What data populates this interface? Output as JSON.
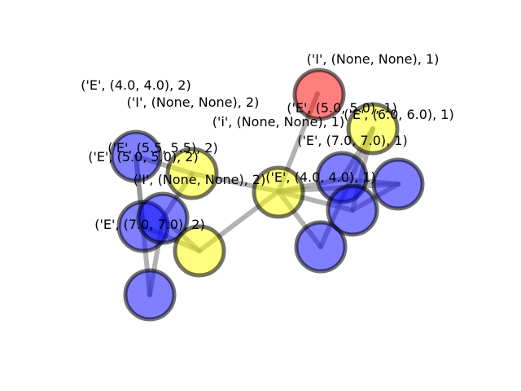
{
  "graph": {
    "colors": {
      "E": "#0000ff",
      "I": "#ffff00",
      "root": "#ff0000"
    },
    "labels": [
      "('I', (None, None), 1)",
      "('E', (4.0, 4.0), 2)",
      "('I', (None, None), 2)",
      "('E', (5.0, 5.0), 1)",
      "('E', (6.0, 6.0), 1)",
      "('i', (None, None), 1)",
      "('E', (7.0, 7.0), 1)",
      "('E', (5.5, 5.5), 2)",
      "('E', (5.0, 5.0), 2)",
      "('I', (None, None), 2)",
      "('E', (4.0, 4.0), 1)",
      "('E', (7.0, 7.0), 2)"
    ]
  }
}
